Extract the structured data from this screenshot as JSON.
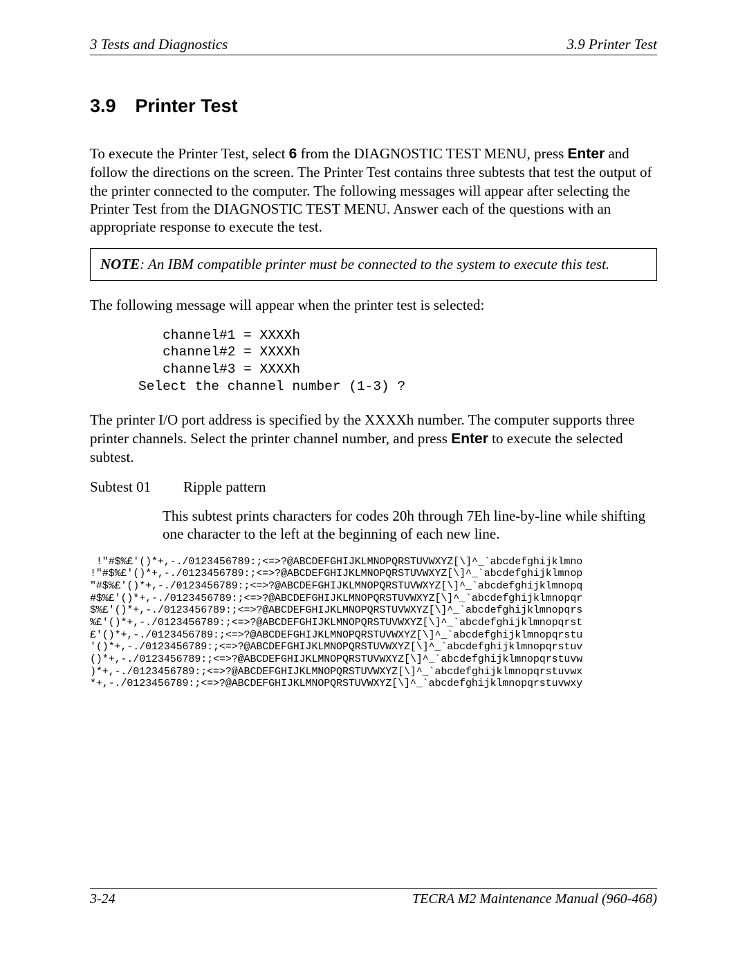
{
  "header": {
    "left": "3  Tests and Diagnostics",
    "right": "3.9  Printer Test"
  },
  "section": {
    "number": "3.9",
    "title": "Printer Test"
  },
  "intro": {
    "pre_bold1": "To execute the Printer Test, select ",
    "bold1": "6",
    "mid1": " from the DIAGNOSTIC TEST MENU, press ",
    "bold2": "Enter",
    "post": " and follow the directions on the screen. The Printer Test contains three subtests that test the output of the printer connected to the computer. The following messages will appear after selecting the Printer Test from the DIAGNOSTIC TEST MENU. Answer each of the questions with an appropriate response to execute the test."
  },
  "note": {
    "label": "NOTE",
    "text": ":   An IBM compatible printer must be connected to the system to execute this test."
  },
  "para_after_note": "The following message will appear when the printer test is selected:",
  "code_channels": "   channel#1 = XXXXh\n   channel#2 = XXXXh\n   channel#3 = XXXXh\nSelect the channel number (1-3) ?",
  "para_io": {
    "pre": "The printer I/O port address is specified by the XXXXh number. The computer supports three printer channels. Select the printer channel number, and press ",
    "bold": "Enter",
    "post": " to execute the selected subtest."
  },
  "subtest": {
    "label": "Subtest 01",
    "name": "Ripple pattern"
  },
  "subtest_desc": "This subtest prints characters for codes 20h through 7Eh line-by-line while shifting one character to the left at the beginning of each new line.",
  "ripple": " !\"#$%£'()*+,-./0123456789:;<=>?@ABCDEFGHIJKLMNOPQRSTUVWXYZ[\\]^_`abcdefghijklmno\n!\"#$%£'()*+,-./0123456789:;<=>?@ABCDEFGHIJKLMNOPQRSTUVWXYZ[\\]^_`abcdefghijklmnop\n\"#$%£'()*+,-./0123456789:;<=>?@ABCDEFGHIJKLMNOPQRSTUVWXYZ[\\]^_`abcdefghijklmnopq\n#$%£'()*+,-./0123456789:;<=>?@ABCDEFGHIJKLMNOPQRSTUVWXYZ[\\]^_`abcdefghijklmnopqr\n$%£'()*+,-./0123456789:;<=>?@ABCDEFGHIJKLMNOPQRSTUVWXYZ[\\]^_`abcdefghijklmnopqrs\n%£'()*+,-./0123456789:;<=>?@ABCDEFGHIJKLMNOPQRSTUVWXYZ[\\]^_`abcdefghijklmnopqrst\n£'()*+,-./0123456789:;<=>?@ABCDEFGHIJKLMNOPQRSTUVWXYZ[\\]^_`abcdefghijklmnopqrstu\n'()*+,-./0123456789:;<=>?@ABCDEFGHIJKLMNOPQRSTUVWXYZ[\\]^_`abcdefghijklmnopqrstuv\n()*+,-./0123456789:;<=>?@ABCDEFGHIJKLMNOPQRSTUVWXYZ[\\]^_`abcdefghijklmnopqrstuvw\n)*+,-./0123456789:;<=>?@ABCDEFGHIJKLMNOPQRSTUVWXYZ[\\]^_`abcdefghijklmnopqrstuvwx\n*+,-./0123456789:;<=>?@ABCDEFGHIJKLMNOPQRSTUVWXYZ[\\]^_`abcdefghijklmnopqrstuvwxy",
  "footer": {
    "left": "3-24",
    "right": "TECRA M2 Maintenance Manual (960-468)"
  }
}
